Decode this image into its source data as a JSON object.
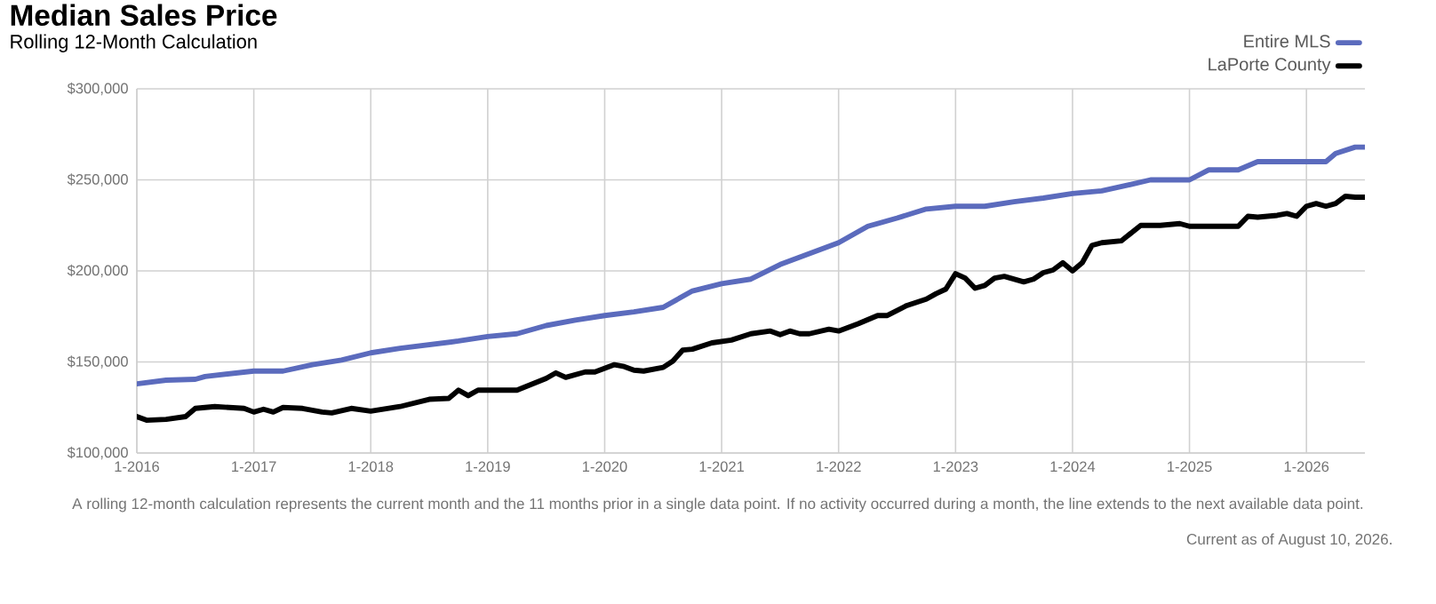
{
  "chart_data": {
    "type": "line",
    "title": "Median Sales Price",
    "subtitle": "Rolling 12-Month Calculation",
    "annotations": [
      "A rolling 12-month calculation represents the current month and the 11 months prior in a single data point. If no activity occurred during a month, the line extends to the next available data point.",
      "Current as of August 10, 2026."
    ],
    "xlim": [
      "2016-01",
      "2026-07"
    ],
    "xticks": [
      {
        "value": "2016-01",
        "label": "1-2016"
      },
      {
        "value": "2017-01",
        "label": "1-2017"
      },
      {
        "value": "2018-01",
        "label": "1-2018"
      },
      {
        "value": "2019-01",
        "label": "1-2019"
      },
      {
        "value": "2020-01",
        "label": "1-2020"
      },
      {
        "value": "2021-01",
        "label": "1-2021"
      },
      {
        "value": "2022-01",
        "label": "1-2022"
      },
      {
        "value": "2023-01",
        "label": "1-2023"
      },
      {
        "value": "2024-01",
        "label": "1-2024"
      },
      {
        "value": "2025-01",
        "label": "1-2025"
      },
      {
        "value": "2026-01",
        "label": "1-2026"
      }
    ],
    "ylim": [
      100000,
      300000
    ],
    "yticks": [
      {
        "value": 100000,
        "label": "$100,000"
      },
      {
        "value": 150000,
        "label": "$150,000"
      },
      {
        "value": 200000,
        "label": "$200,000"
      },
      {
        "value": 250000,
        "label": "$250,000"
      },
      {
        "value": 300000,
        "label": "$300,000"
      }
    ],
    "grid": true,
    "legend": "top right",
    "marker": "none",
    "line_style": "solid",
    "series": [
      {
        "name": "Entire MLS",
        "color": "#5b6bbd",
        "x": [
          "2016-01",
          "2016-04",
          "2016-07",
          "2016-08",
          "2017-01",
          "2017-04",
          "2017-07",
          "2017-10",
          "2018-01",
          "2018-04",
          "2018-07",
          "2018-10",
          "2019-01",
          "2019-04",
          "2019-07",
          "2019-10",
          "2020-01",
          "2020-04",
          "2020-07",
          "2020-10",
          "2021-01",
          "2021-04",
          "2021-07",
          "2021-10",
          "2022-01",
          "2022-04",
          "2022-07",
          "2022-10",
          "2023-01",
          "2023-04",
          "2023-07",
          "2023-10",
          "2024-01",
          "2024-04",
          "2024-07",
          "2024-09",
          "2025-01",
          "2025-03",
          "2025-06",
          "2025-08",
          "2026-01",
          "2026-03",
          "2026-04",
          "2026-06",
          "2026-07"
        ],
        "values": [
          138000,
          140000,
          140500,
          142000,
          145000,
          145000,
          148500,
          151000,
          155000,
          157500,
          159500,
          161500,
          164000,
          165500,
          170000,
          173000,
          175500,
          177500,
          180000,
          189000,
          193000,
          195500,
          203500,
          209500,
          215500,
          224500,
          229000,
          234000,
          235500,
          235500,
          238000,
          240000,
          242500,
          244000,
          247500,
          250000,
          250000,
          255500,
          255500,
          260000,
          260000,
          260000,
          264500,
          268000,
          268000
        ]
      },
      {
        "name": "LaPorte County",
        "color": "#000000",
        "x": [
          "2016-01",
          "2016-02",
          "2016-04",
          "2016-06",
          "2016-07",
          "2016-09",
          "2016-12",
          "2017-01",
          "2017-02",
          "2017-03",
          "2017-04",
          "2017-06",
          "2017-08",
          "2017-09",
          "2017-11",
          "2018-01",
          "2018-04",
          "2018-07",
          "2018-09",
          "2018-10",
          "2018-11",
          "2018-12",
          "2019-04",
          "2019-07",
          "2019-08",
          "2019-09",
          "2019-11",
          "2019-12",
          "2020-02",
          "2020-03",
          "2020-04",
          "2020-05",
          "2020-07",
          "2020-08",
          "2020-09",
          "2020-10",
          "2020-12",
          "2021-02",
          "2021-04",
          "2021-06",
          "2021-07",
          "2021-08",
          "2021-09",
          "2021-10",
          "2021-12",
          "2022-01",
          "2022-03",
          "2022-05",
          "2022-06",
          "2022-08",
          "2022-10",
          "2022-11",
          "2022-12",
          "2023-01",
          "2023-02",
          "2023-03",
          "2023-04",
          "2023-05",
          "2023-06",
          "2023-08",
          "2023-09",
          "2023-10",
          "2023-11",
          "2023-12",
          "2024-01",
          "2024-02",
          "2024-03",
          "2024-04",
          "2024-06",
          "2024-08",
          "2024-10",
          "2024-12",
          "2025-01",
          "2025-06",
          "2025-07",
          "2025-08",
          "2025-10",
          "2025-11",
          "2025-12",
          "2026-01",
          "2026-02",
          "2026-03",
          "2026-04",
          "2026-05",
          "2026-06",
          "2026-07"
        ],
        "values": [
          120000,
          118000,
          118500,
          120000,
          124500,
          125500,
          124500,
          122500,
          124000,
          122500,
          125000,
          124500,
          122500,
          122000,
          124500,
          123000,
          125500,
          129500,
          130000,
          134500,
          131500,
          134500,
          134500,
          141000,
          144000,
          141500,
          144500,
          144500,
          148500,
          147500,
          145500,
          145000,
          147000,
          150500,
          156500,
          157000,
          160500,
          162000,
          165500,
          167000,
          165000,
          167000,
          165500,
          165500,
          168000,
          167000,
          171000,
          175500,
          175500,
          181000,
          184500,
          187500,
          190000,
          198500,
          196000,
          190500,
          192000,
          196000,
          197000,
          194000,
          195500,
          199000,
          200500,
          204500,
          200000,
          204500,
          214000,
          215500,
          216500,
          225000,
          225000,
          226000,
          224500,
          224500,
          230000,
          229500,
          230500,
          231500,
          230000,
          235500,
          237000,
          235500,
          237000,
          241000,
          240500,
          240500
        ]
      }
    ]
  }
}
